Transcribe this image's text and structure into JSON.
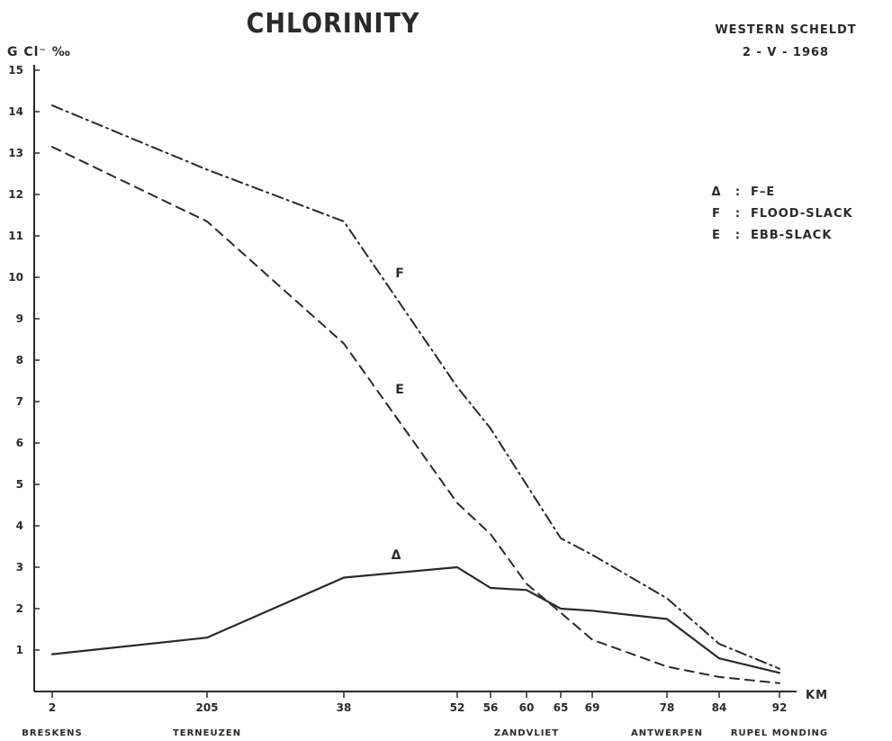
{
  "chart_data": {
    "type": "line",
    "title": "CHLORINITY",
    "subtitle_lines": [
      "WESTERN SCHELDT",
      "2 - V - 1968"
    ],
    "ylabel": "G Cl⁻ ‰",
    "xlabel": "KM",
    "ylim": [
      0,
      15
    ],
    "yticks": [
      1,
      2,
      3,
      4,
      5,
      6,
      7,
      8,
      9,
      10,
      11,
      12,
      13,
      14,
      15
    ],
    "x_ticks": [
      "2",
      "205",
      "38",
      "52",
      "56",
      "60",
      "65",
      "69",
      "78",
      "84",
      "92"
    ],
    "place_labels": [
      {
        "at": "2",
        "text": "BRESKENS"
      },
      {
        "at": "205",
        "text": "TERNEUZEN"
      },
      {
        "at": "60",
        "text": "ZANDVLIET"
      },
      {
        "at": "78",
        "text": "ANTWERPEN"
      },
      {
        "at": "92",
        "text": "RUPEL MONDING"
      }
    ],
    "legend": [
      {
        "key": "Δ",
        "text": "F–E"
      },
      {
        "key": "F",
        "text": "FLOOD-SLACK"
      },
      {
        "key": "E",
        "text": "EBB-SLACK"
      }
    ],
    "series": [
      {
        "name": "F",
        "style": "dashdot",
        "points": [
          {
            "x": "2",
            "y": 14.15
          },
          {
            "x": "205",
            "y": 12.6
          },
          {
            "x": "38",
            "y": 11.35
          },
          {
            "x": "52",
            "y": 7.35
          },
          {
            "x": "56",
            "y": 6.35
          },
          {
            "x": "65",
            "y": 3.7
          },
          {
            "x": "69",
            "y": 3.3
          },
          {
            "x": "78",
            "y": 2.25
          },
          {
            "x": "84",
            "y": 1.15
          },
          {
            "x": "92",
            "y": 0.55
          }
        ]
      },
      {
        "name": "E",
        "style": "dashed",
        "points": [
          {
            "x": "2",
            "y": 13.15
          },
          {
            "x": "205",
            "y": 11.35
          },
          {
            "x": "38",
            "y": 8.4
          },
          {
            "x": "52",
            "y": 4.55
          },
          {
            "x": "56",
            "y": 3.8
          },
          {
            "x": "60",
            "y": 2.6
          },
          {
            "x": "65",
            "y": 1.9
          },
          {
            "x": "69",
            "y": 1.25
          },
          {
            "x": "78",
            "y": 0.6
          },
          {
            "x": "84",
            "y": 0.35
          },
          {
            "x": "92",
            "y": 0.2
          }
        ]
      },
      {
        "name": "Δ",
        "style": "solid",
        "points": [
          {
            "x": "2",
            "y": 0.9
          },
          {
            "x": "205",
            "y": 1.3
          },
          {
            "x": "38",
            "y": 2.75
          },
          {
            "x": "52",
            "y": 3.0
          },
          {
            "x": "56",
            "y": 2.5
          },
          {
            "x": "60",
            "y": 2.45
          },
          {
            "x": "65",
            "y": 2.0
          },
          {
            "x": "69",
            "y": 1.95
          },
          {
            "x": "78",
            "y": 1.75
          },
          {
            "x": "84",
            "y": 0.8
          },
          {
            "x": "92",
            "y": 0.45
          }
        ]
      }
    ],
    "line_labels": [
      {
        "series": "F",
        "x": "38",
        "y": 10.0
      },
      {
        "series": "E",
        "x": "38",
        "y": 7.2
      },
      {
        "series": "Δ",
        "x": "38",
        "y": 3.2
      }
    ],
    "grid": false,
    "legend_position": "top-right"
  }
}
